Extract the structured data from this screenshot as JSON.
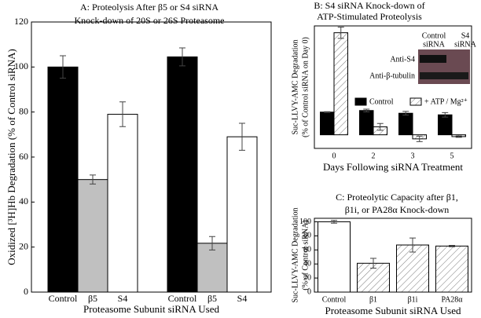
{
  "chart_data": [
    {
      "type": "bar",
      "title": [
        "A: Proteolysis After β5 or S4 siRNA",
        "Knock-down of 20S or 26S Proteasome"
      ],
      "x_label": "Proteasome Subunit siRNA Used",
      "y_label": "Oxidized [³H]Hb Degradation (% of Control siRNA)",
      "categories": [
        "Control",
        "β5",
        "S4",
        "Control",
        "β5",
        "S4"
      ],
      "values": [
        100,
        50,
        79,
        104.5,
        21.7,
        69
      ],
      "errors": [
        5,
        2,
        5.5,
        4,
        3,
        6
      ],
      "colors": [
        "#000000",
        "#c0c0c0",
        "#ffffff",
        "#000000",
        "#c0c0c0",
        "#ffffff"
      ],
      "ylim": [
        0,
        120
      ],
      "yticks": [
        0,
        20,
        40,
        60,
        80,
        100,
        120
      ]
    },
    {
      "type": "grouped-bar",
      "title": [
        "B: S4 siRNA Knock-down of",
        "ATP-Stimulated Proteolysis"
      ],
      "x_label": "Days Following siRNA Treatment",
      "y_label": [
        "Suc-LLVY-AMC Degradation",
        "(% of Control siRNA on Day 0)"
      ],
      "categories": [
        "0",
        "2",
        "3",
        "5"
      ],
      "series": [
        {
          "name": "Control",
          "color": "#000000",
          "hatched": false,
          "values": [
            100,
            107,
            95,
            88
          ],
          "errors": [
            2,
            6,
            8,
            10
          ]
        },
        {
          "name": "+ ATP / Mg²⁺",
          "color": "#ffffff",
          "hatched": true,
          "values": [
            450,
            35,
            -18,
            -8
          ],
          "errors": [
            25,
            15,
            12,
            3
          ]
        }
      ],
      "ylim": [
        -60,
        480
      ],
      "legend": "right",
      "blot": {
        "columns": [
          [
            "Control",
            "siRNA"
          ],
          [
            "S4",
            "siRNA"
          ]
        ],
        "rows": [
          "Anti-S4",
          "Anti-β-tubulin"
        ]
      }
    },
    {
      "type": "bar",
      "title": [
        "C: Proteolytic Capacity after β1,",
        "β1i, or PA28α Knock-down"
      ],
      "x_label": "Proteasome Subunit siRNA Used",
      "y_label": [
        "Suc-LLVY-AMC Degradation",
        "(% of Control siRNA)"
      ],
      "categories": [
        "Control",
        "β1",
        "β1i",
        "PA28α"
      ],
      "values": [
        100,
        41,
        67,
        65.5
      ],
      "errors": [
        2,
        7,
        10,
        1
      ],
      "colors": [
        "#ffffff",
        "#ffffff",
        "#ffffff",
        "#ffffff"
      ],
      "hatched": [
        false,
        true,
        true,
        true
      ],
      "ylim": [
        0,
        105
      ],
      "yticks": [
        0,
        20,
        40,
        60,
        80,
        100
      ]
    }
  ]
}
